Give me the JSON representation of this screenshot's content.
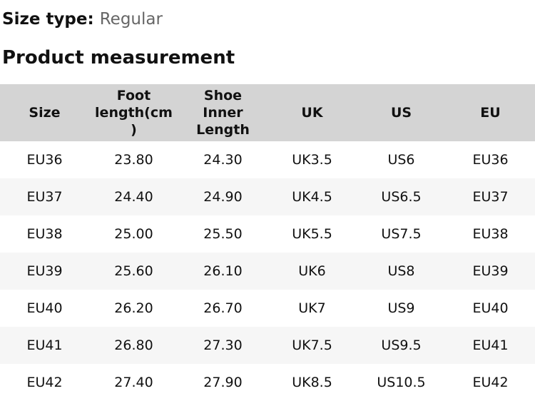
{
  "size_type": {
    "label": "Size type:",
    "value": "Regular"
  },
  "section_title": "Product measurement",
  "table": {
    "columns": [
      "Size",
      "Foot length(cm )",
      "Shoe Inner Length",
      "UK",
      "US",
      "EU"
    ],
    "rows": [
      [
        "EU36",
        "23.80",
        "24.30",
        "UK3.5",
        "US6",
        "EU36"
      ],
      [
        "EU37",
        "24.40",
        "24.90",
        "UK4.5",
        "US6.5",
        "EU37"
      ],
      [
        "EU38",
        "25.00",
        "25.50",
        "UK5.5",
        "US7.5",
        "EU38"
      ],
      [
        "EU39",
        "25.60",
        "26.10",
        "UK6",
        "US8",
        "EU39"
      ],
      [
        "EU40",
        "26.20",
        "26.70",
        "UK7",
        "US9",
        "EU40"
      ],
      [
        "EU41",
        "26.80",
        "27.30",
        "UK7.5",
        "US9.5",
        "EU41"
      ],
      [
        "EU42",
        "27.40",
        "27.90",
        "UK8.5",
        "US10.5",
        "EU42"
      ]
    ]
  },
  "colors": {
    "header_bg": "#d4d4d4",
    "row_alt_bg": "#f6f6f6",
    "text": "#111111",
    "muted_text": "#666666"
  }
}
